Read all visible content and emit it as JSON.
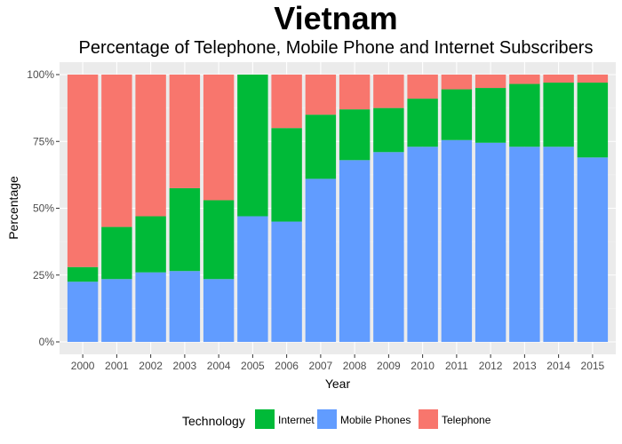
{
  "chart_data": {
    "type": "bar",
    "stacked": true,
    "percent_stacked": true,
    "title": "Vietnam",
    "subtitle": "Percentage of Telephone, Mobile Phone and Internet Subscribers",
    "xlabel": "Year",
    "ylabel": "Percentage",
    "ylim": [
      0,
      100
    ],
    "y_ticks": [
      "0%",
      "25%",
      "50%",
      "75%",
      "100%"
    ],
    "y_tick_values": [
      0,
      25,
      50,
      75,
      100
    ],
    "grid": true,
    "legend_position": "bottom",
    "legend_title": "Technology",
    "legend_order": [
      "Internet",
      "Mobile Phones",
      "Telephone"
    ],
    "categories": [
      "2000",
      "2001",
      "2002",
      "2003",
      "2004",
      "2005",
      "2006",
      "2007",
      "2008",
      "2009",
      "2010",
      "2011",
      "2012",
      "2013",
      "2014",
      "2015"
    ],
    "series": [
      {
        "name": "Mobile Phones",
        "color": "#619CFF",
        "values": [
          22.5,
          23.5,
          26,
          26.5,
          23.5,
          47,
          45,
          61,
          68,
          71,
          73,
          75.5,
          74.5,
          73,
          73,
          69
        ]
      },
      {
        "name": "Internet",
        "color": "#00BA38",
        "values": [
          5.5,
          19.5,
          21,
          31,
          29.5,
          53,
          35,
          24,
          19,
          16.5,
          18,
          19,
          20.5,
          23.5,
          24,
          28
        ]
      },
      {
        "name": "Telephone",
        "color": "#F8766D",
        "values": [
          72,
          57,
          53,
          42.5,
          47,
          0,
          20,
          15,
          13,
          12.5,
          9,
          5.5,
          5,
          3.5,
          3,
          3
        ]
      }
    ]
  }
}
